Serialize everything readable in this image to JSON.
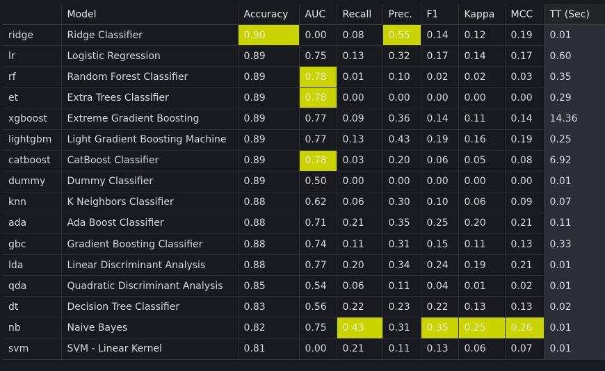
{
  "columns": [
    "",
    "Model",
    "Accuracy",
    "AUC",
    "Recall",
    "Prec.",
    "F1",
    "Kappa",
    "MCC",
    "TT (Sec)"
  ],
  "highlight_color": "#c9d400",
  "rows": [
    {
      "id": "ridge",
      "model": "Ridge Classifier",
      "acc": "0.90",
      "auc": "0.00",
      "recall": "0.08",
      "prec": "0.55",
      "f1": "0.14",
      "kappa": "0.12",
      "mcc": "0.19",
      "tt": "0.01",
      "hl": [
        "acc",
        "prec"
      ]
    },
    {
      "id": "lr",
      "model": "Logistic Regression",
      "acc": "0.89",
      "auc": "0.75",
      "recall": "0.13",
      "prec": "0.32",
      "f1": "0.17",
      "kappa": "0.14",
      "mcc": "0.17",
      "tt": "0.60",
      "hl": []
    },
    {
      "id": "rf",
      "model": "Random Forest Classifier",
      "acc": "0.89",
      "auc": "0.78",
      "recall": "0.01",
      "prec": "0.10",
      "f1": "0.02",
      "kappa": "0.02",
      "mcc": "0.03",
      "tt": "0.35",
      "hl": [
        "auc"
      ]
    },
    {
      "id": "et",
      "model": "Extra Trees Classifier",
      "acc": "0.89",
      "auc": "0.78",
      "recall": "0.00",
      "prec": "0.00",
      "f1": "0.00",
      "kappa": "0.00",
      "mcc": "0.00",
      "tt": "0.29",
      "hl": [
        "auc"
      ]
    },
    {
      "id": "xgboost",
      "model": "Extreme Gradient Boosting",
      "acc": "0.89",
      "auc": "0.77",
      "recall": "0.09",
      "prec": "0.36",
      "f1": "0.14",
      "kappa": "0.11",
      "mcc": "0.14",
      "tt": "14.36",
      "hl": []
    },
    {
      "id": "lightgbm",
      "model": "Light Gradient Boosting Machine",
      "acc": "0.89",
      "auc": "0.77",
      "recall": "0.13",
      "prec": "0.43",
      "f1": "0.19",
      "kappa": "0.16",
      "mcc": "0.19",
      "tt": "0.25",
      "hl": []
    },
    {
      "id": "catboost",
      "model": "CatBoost Classifier",
      "acc": "0.89",
      "auc": "0.78",
      "recall": "0.03",
      "prec": "0.20",
      "f1": "0.06",
      "kappa": "0.05",
      "mcc": "0.08",
      "tt": "6.92",
      "hl": [
        "auc"
      ]
    },
    {
      "id": "dummy",
      "model": "Dummy Classifier",
      "acc": "0.89",
      "auc": "0.50",
      "recall": "0.00",
      "prec": "0.00",
      "f1": "0.00",
      "kappa": "0.00",
      "mcc": "0.00",
      "tt": "0.01",
      "hl": []
    },
    {
      "id": "knn",
      "model": "K Neighbors Classifier",
      "acc": "0.88",
      "auc": "0.62",
      "recall": "0.06",
      "prec": "0.30",
      "f1": "0.10",
      "kappa": "0.06",
      "mcc": "0.09",
      "tt": "0.07",
      "hl": []
    },
    {
      "id": "ada",
      "model": "Ada Boost Classifier",
      "acc": "0.88",
      "auc": "0.71",
      "recall": "0.21",
      "prec": "0.35",
      "f1": "0.25",
      "kappa": "0.20",
      "mcc": "0.21",
      "tt": "0.11",
      "hl": []
    },
    {
      "id": "gbc",
      "model": "Gradient Boosting Classifier",
      "acc": "0.88",
      "auc": "0.74",
      "recall": "0.11",
      "prec": "0.31",
      "f1": "0.15",
      "kappa": "0.11",
      "mcc": "0.13",
      "tt": "0.33",
      "hl": []
    },
    {
      "id": "lda",
      "model": "Linear Discriminant Analysis",
      "acc": "0.88",
      "auc": "0.77",
      "recall": "0.20",
      "prec": "0.34",
      "f1": "0.24",
      "kappa": "0.19",
      "mcc": "0.21",
      "tt": "0.01",
      "hl": []
    },
    {
      "id": "qda",
      "model": "Quadratic Discriminant Analysis",
      "acc": "0.85",
      "auc": "0.54",
      "recall": "0.06",
      "prec": "0.11",
      "f1": "0.04",
      "kappa": "0.01",
      "mcc": "0.02",
      "tt": "0.01",
      "hl": []
    },
    {
      "id": "dt",
      "model": "Decision Tree Classifier",
      "acc": "0.83",
      "auc": "0.56",
      "recall": "0.22",
      "prec": "0.23",
      "f1": "0.22",
      "kappa": "0.13",
      "mcc": "0.13",
      "tt": "0.02",
      "hl": []
    },
    {
      "id": "nb",
      "model": "Naive Bayes",
      "acc": "0.82",
      "auc": "0.75",
      "recall": "0.43",
      "prec": "0.31",
      "f1": "0.35",
      "kappa": "0.25",
      "mcc": "0.26",
      "tt": "0.01",
      "hl": [
        "recall",
        "f1",
        "kappa",
        "mcc"
      ]
    },
    {
      "id": "svm",
      "model": "SVM - Linear Kernel",
      "acc": "0.81",
      "auc": "0.00",
      "recall": "0.21",
      "prec": "0.11",
      "f1": "0.13",
      "kappa": "0.06",
      "mcc": "0.07",
      "tt": "0.01",
      "hl": []
    }
  ]
}
